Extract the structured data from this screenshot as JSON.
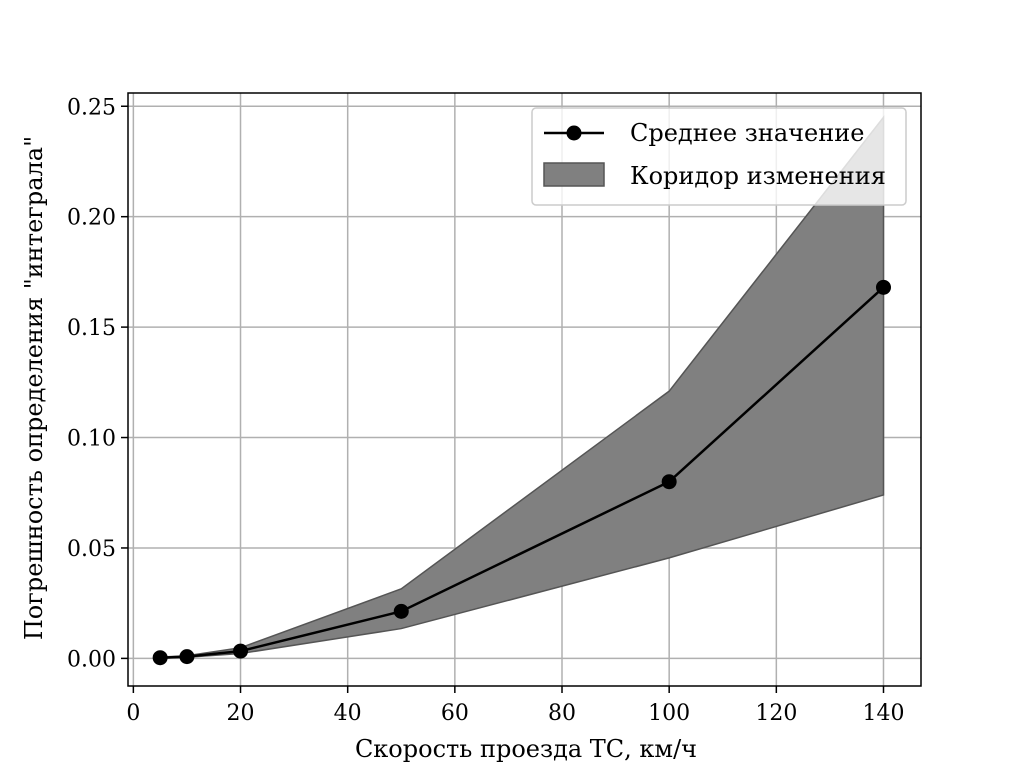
{
  "chart_data": {
    "type": "line",
    "title": "",
    "xlabel": "Скорость проезда ТС, км/ч",
    "ylabel": "Погрешность определения \"интеграла\"",
    "xlim": [
      -1,
      147
    ],
    "ylim": [
      -0.0125,
      0.256
    ],
    "xticks": [
      0,
      20,
      40,
      60,
      80,
      100,
      120,
      140
    ],
    "yticks": [
      0.0,
      0.05,
      0.1,
      0.15,
      0.2,
      0.25
    ],
    "xtick_labels": [
      "0",
      "20",
      "40",
      "60",
      "80",
      "100",
      "120",
      "140"
    ],
    "ytick_labels": [
      "0.00",
      "0.05",
      "0.10",
      "0.15",
      "0.20",
      "0.25"
    ],
    "grid": true,
    "legend_position": "top-right",
    "x": [
      5,
      10,
      20,
      50,
      100,
      140
    ],
    "series": [
      {
        "name": "Среднее значение",
        "kind": "line-marker",
        "color": "#000000",
        "values": [
          0.0003,
          0.0008,
          0.0033,
          0.0213,
          0.08,
          0.168
        ]
      },
      {
        "name": "Коридор изменения",
        "kind": "band",
        "color": "#808080",
        "lower": [
          0.0001,
          0.0005,
          0.0022,
          0.0135,
          0.0455,
          0.074
        ],
        "upper": [
          0.0006,
          0.0012,
          0.0048,
          0.0315,
          0.121,
          0.245
        ]
      }
    ]
  }
}
